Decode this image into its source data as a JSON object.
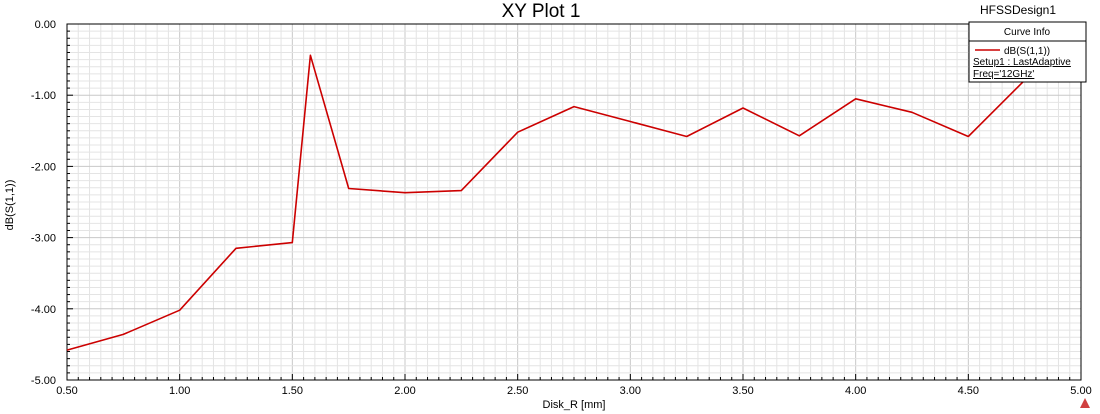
{
  "design_name": "HFSSDesign1",
  "legend": {
    "header": "Curve Info",
    "curve_name": "dB(S(1,1))",
    "setup_line": "Setup1 : LastAdaptive",
    "freq_line": "Freq='12GHz'"
  },
  "colors": {
    "series": "#cc0000",
    "grid_minor": "#e4e4e4",
    "grid_major": "#c8c8c8",
    "axis": "#000000",
    "marker": "#d04040"
  },
  "icons": {
    "corner_marker": "triangle-marker-icon"
  },
  "chart_data": {
    "type": "line",
    "title": "XY Plot 1",
    "xlabel": "Disk_R [mm]",
    "ylabel": "dB(S(1,1))",
    "xlim": [
      0.5,
      5.0
    ],
    "ylim": [
      -5.0,
      0.0
    ],
    "grid": true,
    "legend_position": "top-right",
    "x_ticks": [
      "0.50",
      "1.00",
      "1.50",
      "2.00",
      "2.50",
      "3.00",
      "3.50",
      "4.00",
      "4.50",
      "5.00"
    ],
    "y_ticks": [
      "0.00",
      "-1.00",
      "-2.00",
      "-3.00",
      "-4.00",
      "-5.00"
    ],
    "series": [
      {
        "name": "dB(S(1,1))",
        "x": [
          0.5,
          0.75,
          1.0,
          1.25,
          1.5,
          1.58,
          1.75,
          2.0,
          2.25,
          2.5,
          2.75,
          3.0,
          3.25,
          3.5,
          3.75,
          4.0,
          4.25,
          4.5,
          4.75,
          5.0
        ],
        "y": [
          -4.58,
          -4.36,
          -4.02,
          -3.15,
          -3.07,
          -0.44,
          -2.31,
          -2.37,
          -2.34,
          -1.52,
          -1.16,
          -1.37,
          -1.58,
          -1.18,
          -1.57,
          -1.05,
          -1.24,
          -1.58,
          -0.79,
          -0.35
        ]
      }
    ]
  }
}
